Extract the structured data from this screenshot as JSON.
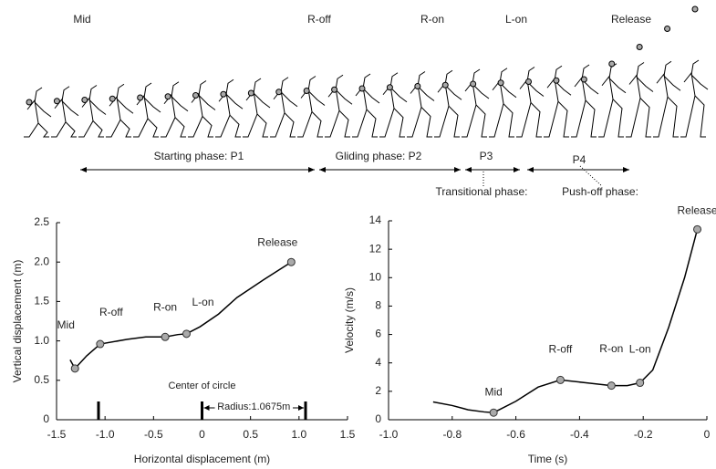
{
  "phase_diagram": {
    "events": [
      "Mid",
      "R-off",
      "R-on",
      "L-on",
      "Release"
    ],
    "phases": [
      "Starting phase: P1",
      "Gliding phase: P2",
      "P3",
      "P4"
    ],
    "phase_names": [
      "Transitional phase:",
      "Push-off phase:"
    ]
  },
  "chart_data": [
    {
      "type": "line",
      "xlabel": "Horizontal displacement (m)",
      "ylabel": "Vertical displacement (m)",
      "xlim": [
        -1.5,
        1.5
      ],
      "ylim": [
        0,
        2.5
      ],
      "xticks": [
        -1.5,
        {
          "value": -1,
          "label": "-1.0"
        },
        -0.5,
        0,
        0.5,
        {
          "value": 1,
          "label": "1.0"
        },
        1.5
      ],
      "yticks": [
        0,
        0.5,
        {
          "value": 1,
          "label": "1.0"
        },
        1.5,
        {
          "value": 2,
          "label": "2.0"
        },
        2.5
      ],
      "line": {
        "color": "#000000",
        "x": [
          -1.36,
          -1.31,
          -1.19,
          -1.05,
          -0.77,
          -0.58,
          -0.38,
          -0.25,
          -0.16,
          -0.02,
          0.17,
          0.36,
          0.64,
          0.92
        ],
        "y": [
          0.76,
          0.65,
          0.81,
          0.96,
          1.02,
          1.05,
          1.05,
          1.08,
          1.09,
          1.18,
          1.34,
          1.55,
          1.78,
          2.0
        ]
      },
      "points": {
        "color": "#aaaaaa",
        "x": [
          -1.31,
          -1.05,
          -0.38,
          -0.16,
          0.92
        ],
        "y": [
          0.65,
          0.96,
          1.05,
          1.09,
          2.0
        ],
        "labels": [
          "Mid",
          "R-off",
          "R-on",
          "L-on",
          "Release"
        ]
      },
      "annotation": "Center of circle",
      "circle_marks": [
        -1.0675,
        0,
        1.0675
      ],
      "radius_label": "Radius:1.0675m"
    },
    {
      "type": "line",
      "xlabel": "Time (s)",
      "ylabel": "Velocity (m/s)",
      "xlim": [
        -1.0,
        0
      ],
      "ylim": [
        0,
        14
      ],
      "xticks": [
        {
          "value": -1,
          "label": "-1.0"
        },
        -0.8,
        -0.6,
        -0.4,
        -0.2,
        0
      ],
      "yticks": [
        0,
        2,
        4,
        6,
        8,
        10,
        12,
        14
      ],
      "line": {
        "color": "#000000",
        "x": [
          -0.86,
          -0.8,
          -0.75,
          -0.7,
          -0.67,
          -0.6,
          -0.53,
          -0.46,
          -0.38,
          -0.3,
          -0.25,
          -0.21,
          -0.17,
          -0.12,
          -0.07,
          -0.03
        ],
        "y": [
          1.25,
          1.0,
          0.7,
          0.55,
          0.5,
          1.3,
          2.3,
          2.8,
          2.6,
          2.4,
          2.4,
          2.6,
          3.5,
          6.5,
          10,
          13.4
        ]
      },
      "points": {
        "color": "#aaaaaa",
        "x": [
          -0.67,
          -0.46,
          -0.3,
          -0.21,
          -0.03
        ],
        "y": [
          0.5,
          2.8,
          2.4,
          2.6,
          13.4
        ],
        "labels": [
          "Mid",
          "R-off",
          "R-on",
          "L-on",
          "Release"
        ]
      }
    }
  ]
}
